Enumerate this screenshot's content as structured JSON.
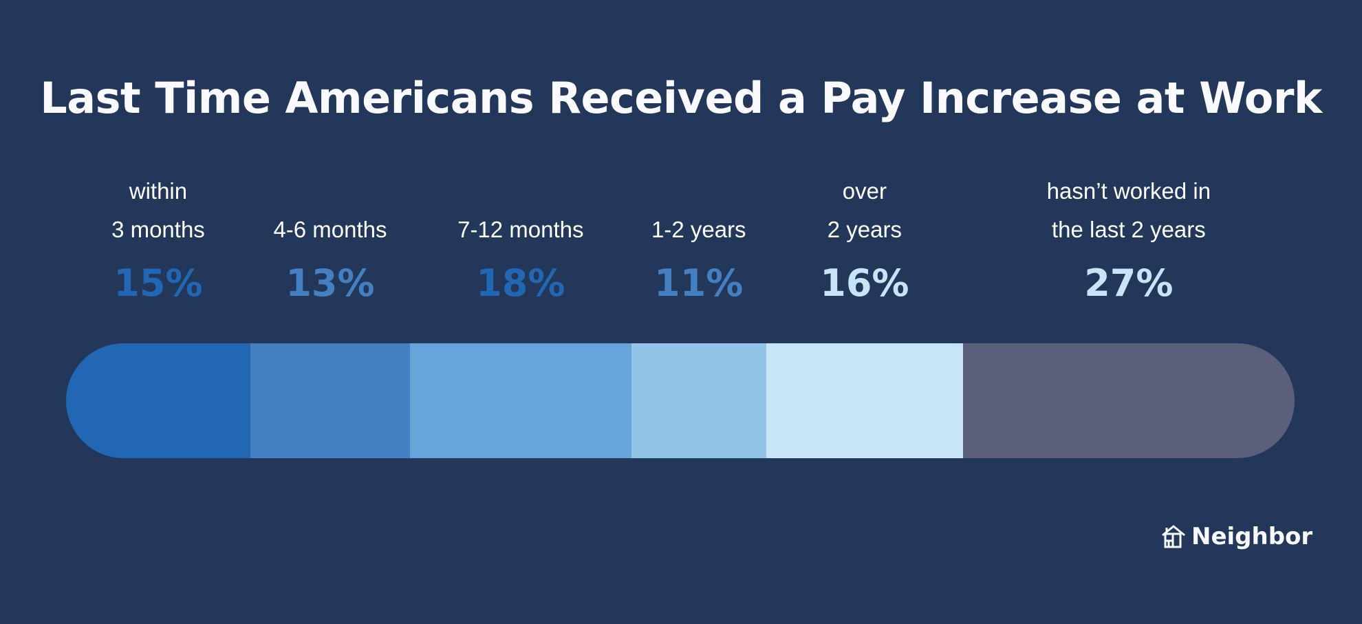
{
  "chart_data": {
    "type": "bar",
    "orientation": "stacked-horizontal",
    "title": "Last Time Americans Received a Pay Increase at Work",
    "categories": [
      [
        "within",
        "3 months"
      ],
      [
        "4-6 months"
      ],
      [
        "7-12 months"
      ],
      [
        "1-2 years"
      ],
      [
        "over",
        "2 years"
      ],
      [
        "hasn’t worked in",
        "the last 2 years"
      ]
    ],
    "values": [
      15,
      13,
      18,
      11,
      16,
      27
    ],
    "value_labels": [
      "15%",
      "13%",
      "18%",
      "11%",
      "16%",
      "27%"
    ],
    "colors": [
      "#2167b3",
      "#4480c1",
      "#66a4d9",
      "#92c3e8",
      "#c7e5f7",
      "#5b5f7c"
    ],
    "label_colors": [
      "#2167b3",
      "#4480c1",
      "#2167b3",
      "#4480c1",
      "#c7e5f7",
      "#c7e5f7"
    ],
    "xlim": [
      0,
      100
    ]
  },
  "brand": {
    "name": "Neighbor",
    "icon": "house-icon"
  }
}
